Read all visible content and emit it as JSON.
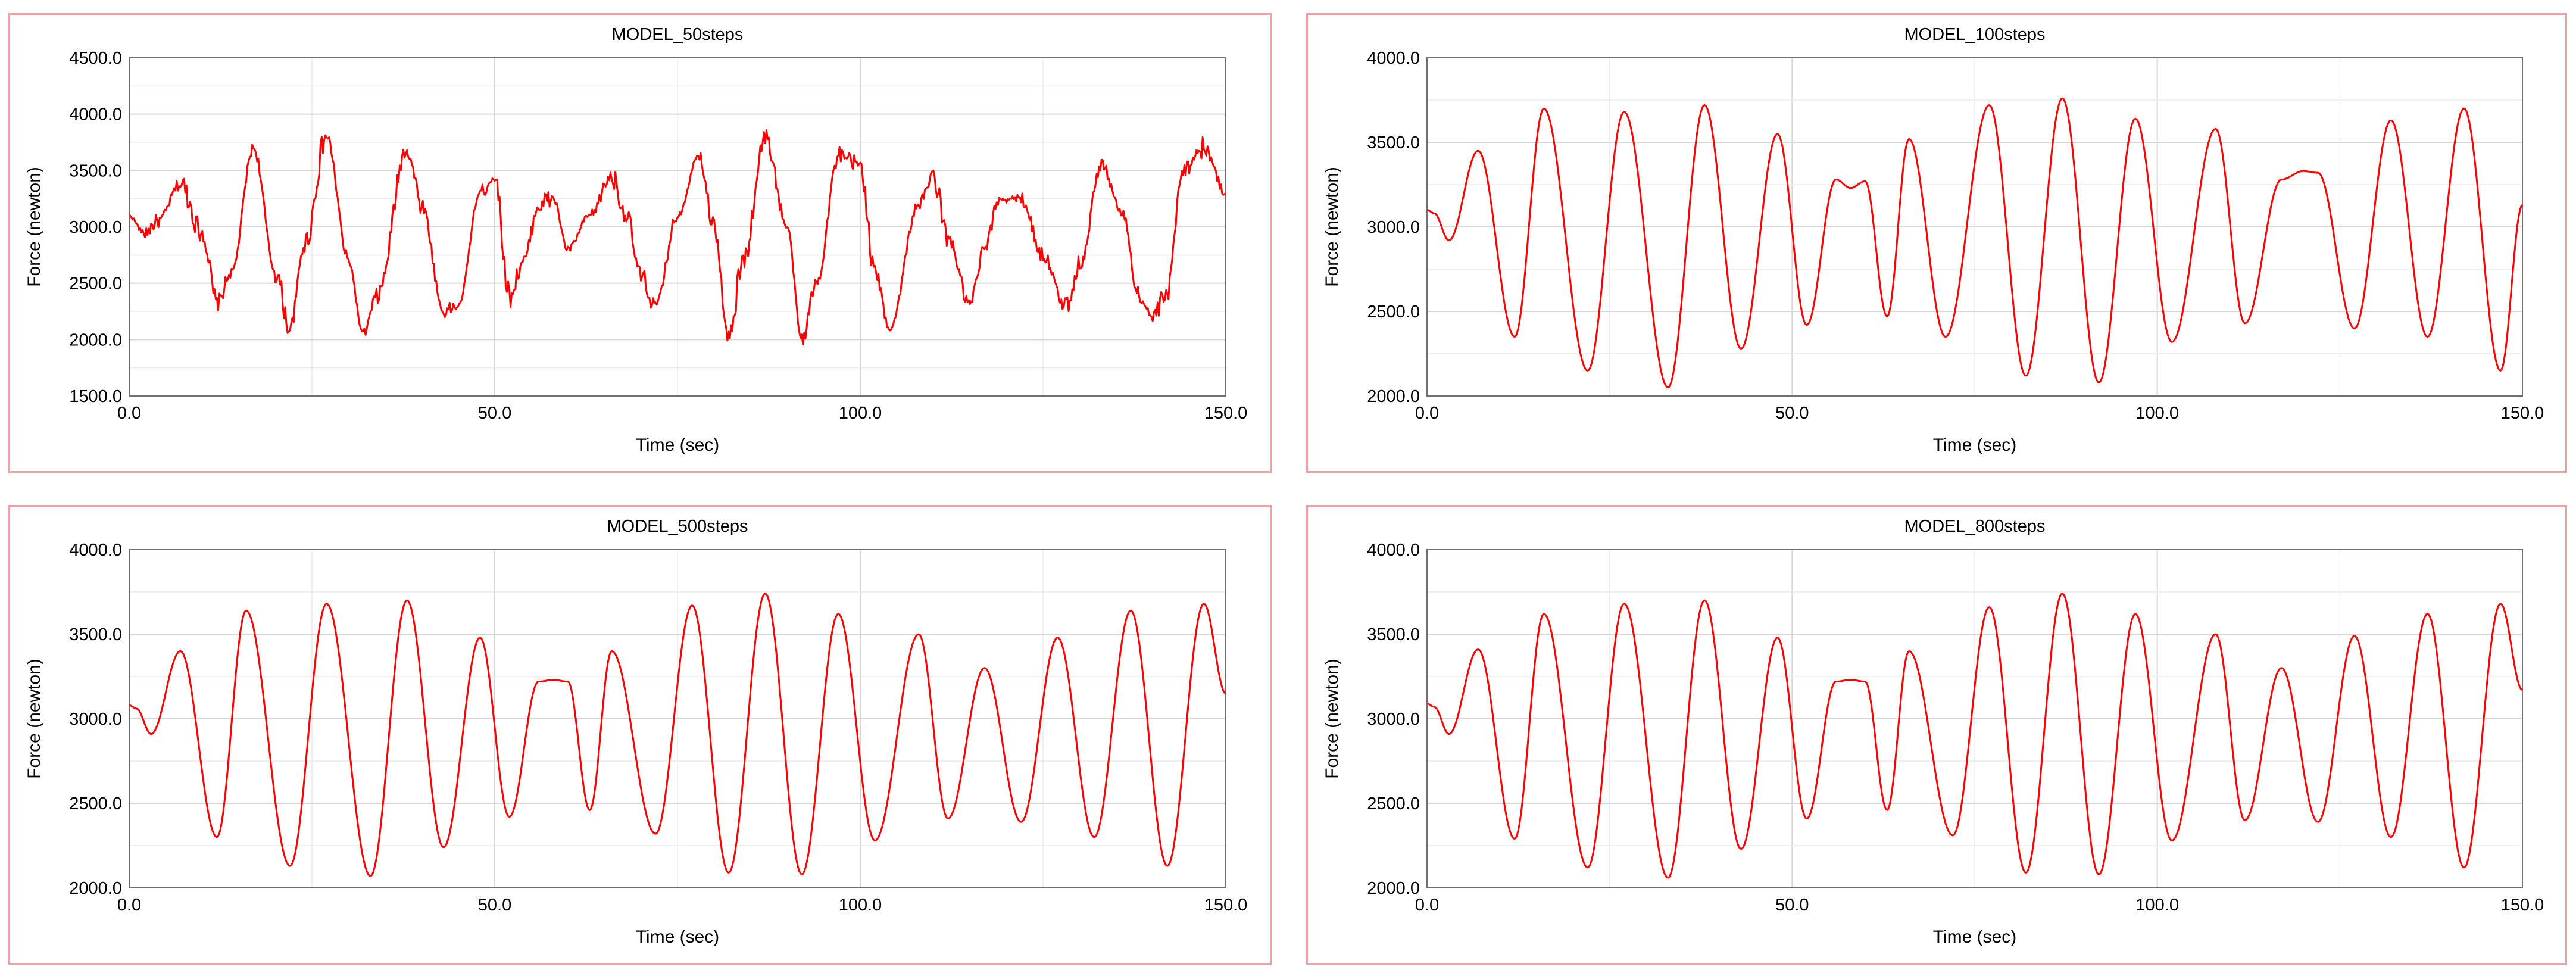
{
  "colors": {
    "series": "#ff0000",
    "panel_border": "#f0a0a0"
  },
  "chart_data": [
    {
      "type": "line",
      "title": "MODEL_50steps",
      "xlabel": "Time (sec)",
      "ylabel": "Force (newton)",
      "xlim": [
        0,
        150
      ],
      "ylim": [
        1500,
        4500
      ],
      "x_ticks": [
        "0.0",
        "50.0",
        "100.0",
        "150.0"
      ],
      "y_ticks": [
        "1500.0",
        "2000.0",
        "2500.0",
        "3000.0",
        "3500.0",
        "4000.0",
        "4500.0"
      ],
      "grid": true,
      "noisy": true,
      "series": [
        {
          "x": [
            0,
            2,
            4,
            7,
            10,
            12,
            14,
            17,
            20,
            22,
            24,
            27,
            30,
            32,
            34,
            38,
            40,
            43,
            45,
            48,
            50,
            52,
            54,
            56,
            58,
            60,
            63,
            66,
            68,
            70,
            72,
            75,
            78,
            80,
            82,
            84,
            87,
            90,
            92,
            94,
            97,
            100,
            102,
            104,
            108,
            110,
            112,
            115,
            117,
            119,
            122,
            125,
            128,
            130,
            133,
            136,
            138,
            140,
            142,
            144,
            147,
            150
          ],
          "y": [
            3100,
            2950,
            3050,
            3380,
            2950,
            2320,
            2600,
            3700,
            2600,
            2100,
            2850,
            3800,
            2700,
            2050,
            2400,
            3700,
            3200,
            2250,
            2300,
            3300,
            3450,
            2400,
            2700,
            3200,
            3250,
            2800,
            3100,
            3450,
            3100,
            2550,
            2300,
            3100,
            3650,
            3000,
            2000,
            2700,
            3800,
            3000,
            2000,
            2500,
            3600,
            3550,
            2600,
            2100,
            3200,
            3450,
            2900,
            2300,
            2800,
            3250,
            3250,
            2750,
            2300,
            2650,
            3550,
            3100,
            2400,
            2200,
            2400,
            3500,
            3700,
            3300
          ]
        }
      ]
    },
    {
      "type": "line",
      "title": "MODEL_100steps",
      "xlabel": "Time (sec)",
      "ylabel": "Force (newton)",
      "xlim": [
        0,
        150
      ],
      "ylim": [
        2000,
        4000
      ],
      "x_ticks": [
        "0.0",
        "50.0",
        "100.0",
        "150.0"
      ],
      "y_ticks": [
        "2000.0",
        "2500.0",
        "3000.0",
        "3500.0",
        "4000.0"
      ],
      "grid": true,
      "noisy": false,
      "series": [
        {
          "x": [
            0,
            1,
            3,
            7,
            12,
            16,
            22,
            27,
            33,
            38,
            43,
            48,
            52,
            56,
            58,
            60,
            63,
            66,
            71,
            77,
            82,
            87,
            92,
            97,
            102,
            108,
            112,
            117,
            120,
            122,
            127,
            132,
            137,
            142,
            147,
            150
          ],
          "y": [
            3100,
            3080,
            2920,
            3450,
            2350,
            3700,
            2150,
            3680,
            2050,
            3720,
            2280,
            3550,
            2420,
            3280,
            3230,
            3270,
            2470,
            3520,
            2350,
            3720,
            2120,
            3760,
            2080,
            3640,
            2320,
            3580,
            2430,
            3280,
            3330,
            3320,
            2400,
            3630,
            2350,
            3700,
            2150,
            3130
          ]
        }
      ]
    },
    {
      "type": "line",
      "title": "MODEL_500steps",
      "xlabel": "Time (sec)",
      "ylabel": "Force (newton)",
      "xlim": [
        0,
        150
      ],
      "ylim": [
        2000,
        4000
      ],
      "x_ticks": [
        "0.0",
        "50.0",
        "100.0",
        "150.0"
      ],
      "y_ticks": [
        "2000.0",
        "2500.0",
        "3000.0",
        "3500.0",
        "4000.0"
      ],
      "grid": true,
      "noisy": false,
      "series": [
        {
          "x": [
            0,
            1,
            3,
            7,
            12,
            16,
            22,
            27,
            33,
            38,
            43,
            48,
            52,
            56,
            58,
            60,
            63,
            66,
            72,
            77,
            82,
            87,
            92,
            97,
            102,
            108,
            112,
            117,
            122,
            127,
            132,
            137,
            142,
            147,
            150
          ],
          "y": [
            3080,
            3060,
            2910,
            3400,
            2300,
            3640,
            2130,
            3680,
            2070,
            3700,
            2240,
            3480,
            2420,
            3220,
            3230,
            3220,
            2460,
            3400,
            2320,
            3670,
            2090,
            3740,
            2080,
            3620,
            2280,
            3500,
            2410,
            3300,
            2390,
            3480,
            2300,
            3640,
            2130,
            3680,
            3150
          ]
        }
      ]
    },
    {
      "type": "line",
      "title": "MODEL_800steps",
      "xlabel": "Time (sec)",
      "ylabel": "Force (newton)",
      "xlim": [
        0,
        150
      ],
      "ylim": [
        2000,
        4000
      ],
      "x_ticks": [
        "0.0",
        "50.0",
        "100.0",
        "150.0"
      ],
      "y_ticks": [
        "2000.0",
        "2500.0",
        "3000.0",
        "3500.0",
        "4000.0"
      ],
      "grid": true,
      "noisy": false,
      "series": [
        {
          "x": [
            0,
            1,
            3,
            7,
            12,
            16,
            22,
            27,
            33,
            38,
            43,
            48,
            52,
            56,
            58,
            60,
            63,
            66,
            72,
            77,
            82,
            87,
            92,
            97,
            102,
            108,
            112,
            117,
            122,
            127,
            132,
            137,
            142,
            147,
            150
          ],
          "y": [
            3090,
            3070,
            2910,
            3410,
            2290,
            3620,
            2120,
            3680,
            2060,
            3700,
            2230,
            3480,
            2410,
            3220,
            3230,
            3220,
            2460,
            3400,
            2310,
            3660,
            2090,
            3740,
            2080,
            3620,
            2280,
            3500,
            2400,
            3300,
            2390,
            3490,
            2300,
            3620,
            2120,
            3680,
            3170
          ]
        }
      ]
    }
  ]
}
